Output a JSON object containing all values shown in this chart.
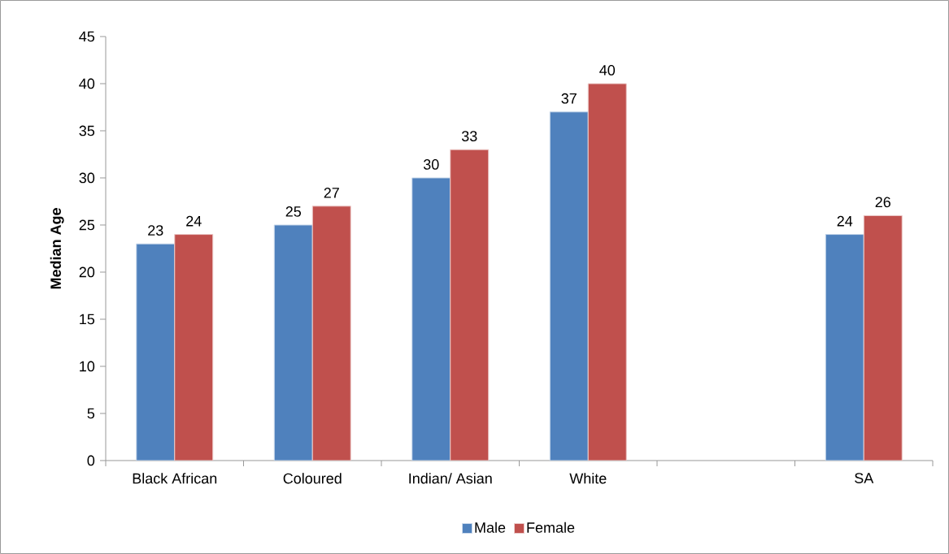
{
  "chart_data": {
    "type": "bar",
    "ylabel": "Median Age",
    "categories": [
      "Black African",
      "Coloured",
      "Indian/ Asian",
      "White",
      null,
      "SA"
    ],
    "series": [
      {
        "name": "Male",
        "color": "#4f81bd",
        "values": [
          23,
          25,
          30,
          37,
          null,
          24
        ]
      },
      {
        "name": "Female",
        "color": "#c0504d",
        "values": [
          24,
          27,
          33,
          40,
          null,
          26
        ]
      }
    ],
    "ylim": [
      0,
      45
    ],
    "yticks": [
      0,
      5,
      10,
      15,
      20,
      25,
      30,
      35,
      40,
      45
    ],
    "legend": "bottom",
    "data_labels": true
  }
}
